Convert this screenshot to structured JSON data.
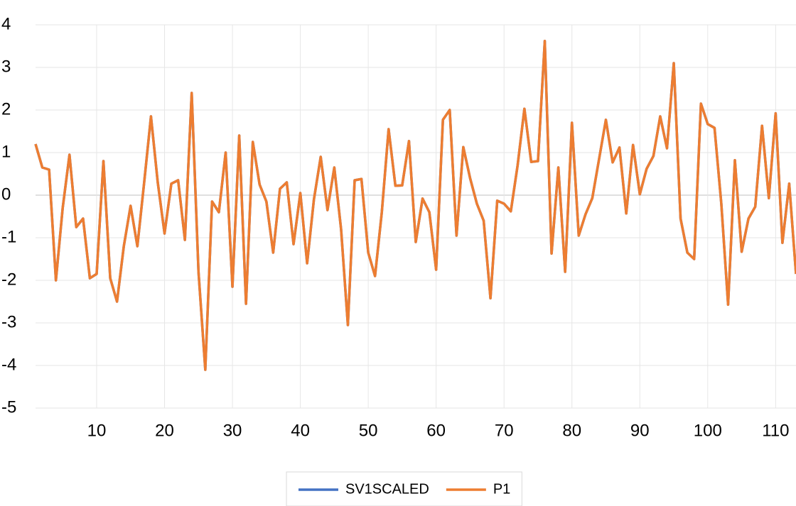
{
  "chart_data": {
    "type": "line",
    "x": [
      1,
      2,
      3,
      4,
      5,
      6,
      7,
      8,
      9,
      10,
      11,
      12,
      13,
      14,
      15,
      16,
      17,
      18,
      19,
      20,
      21,
      22,
      23,
      24,
      25,
      26,
      27,
      28,
      29,
      30,
      31,
      32,
      33,
      34,
      35,
      36,
      37,
      38,
      39,
      40,
      41,
      42,
      43,
      44,
      45,
      46,
      47,
      48,
      49,
      50,
      51,
      52,
      53,
      54,
      55,
      56,
      57,
      58,
      59,
      60,
      61,
      62,
      63,
      64,
      65,
      66,
      67,
      68,
      69,
      70,
      71,
      72,
      73,
      74,
      75,
      76,
      77,
      78,
      79,
      80,
      81,
      82,
      83,
      84,
      85,
      86,
      87,
      88,
      89,
      90,
      91,
      92,
      93,
      94,
      95,
      96,
      97,
      98,
      99,
      100,
      101,
      102,
      103,
      104,
      105,
      106,
      107,
      108,
      109,
      110,
      111,
      112,
      113
    ],
    "series": [
      {
        "name": "SV1SCALED",
        "color": "#4472c4",
        "values": [
          1.2,
          0.65,
          0.6,
          -2.0,
          -0.3,
          0.95,
          -0.75,
          -0.55,
          -1.95,
          -1.85,
          0.8,
          -1.95,
          -2.5,
          -1.2,
          -0.25,
          -1.2,
          0.3,
          1.85,
          0.3,
          -0.9,
          0.27,
          0.35,
          -1.05,
          2.4,
          -1.8,
          -4.1,
          -0.15,
          -0.4,
          1.0,
          -2.15,
          1.4,
          -2.55,
          1.25,
          0.25,
          -0.15,
          -1.35,
          0.15,
          0.3,
          -1.15,
          0.05,
          -1.6,
          -0.1,
          0.9,
          -0.35,
          0.65,
          -0.8,
          -3.05,
          0.35,
          0.38,
          -1.35,
          -1.9,
          -0.4,
          1.55,
          0.22,
          0.23,
          1.27,
          -1.1,
          -0.08,
          -0.4,
          -1.75,
          1.77,
          2.0,
          -0.95,
          1.13,
          0.4,
          -0.2,
          -0.6,
          -2.42,
          -0.13,
          -0.2,
          -0.38,
          0.7,
          2.03,
          0.78,
          0.8,
          3.62,
          -1.37,
          0.65,
          -1.8,
          1.7,
          -0.95,
          -0.45,
          -0.07,
          0.85,
          1.77,
          0.77,
          1.12,
          -0.43,
          1.18,
          0.02,
          0.62,
          0.92,
          1.85,
          1.1,
          3.1,
          -0.55,
          -1.35,
          -1.5,
          2.15,
          1.67,
          1.58,
          -0.2,
          -2.57,
          0.82,
          -1.33,
          -0.55,
          -0.27,
          1.63,
          -0.07,
          1.92,
          -1.12,
          0.27,
          -1.85
        ]
      },
      {
        "name": "P1",
        "color": "#ed7d31",
        "values": [
          1.2,
          0.65,
          0.6,
          -2.0,
          -0.3,
          0.95,
          -0.75,
          -0.55,
          -1.95,
          -1.85,
          0.8,
          -1.95,
          -2.5,
          -1.2,
          -0.25,
          -1.2,
          0.3,
          1.85,
          0.3,
          -0.9,
          0.27,
          0.35,
          -1.05,
          2.4,
          -1.8,
          -4.1,
          -0.15,
          -0.4,
          1.0,
          -2.15,
          1.4,
          -2.55,
          1.25,
          0.25,
          -0.15,
          -1.35,
          0.15,
          0.3,
          -1.15,
          0.05,
          -1.6,
          -0.1,
          0.9,
          -0.35,
          0.65,
          -0.8,
          -3.05,
          0.35,
          0.38,
          -1.35,
          -1.9,
          -0.4,
          1.55,
          0.22,
          0.23,
          1.27,
          -1.1,
          -0.08,
          -0.4,
          -1.75,
          1.77,
          2.0,
          -0.95,
          1.13,
          0.4,
          -0.2,
          -0.6,
          -2.42,
          -0.13,
          -0.2,
          -0.38,
          0.7,
          2.03,
          0.78,
          0.8,
          3.62,
          -1.37,
          0.65,
          -1.8,
          1.7,
          -0.95,
          -0.45,
          -0.07,
          0.85,
          1.77,
          0.77,
          1.12,
          -0.43,
          1.18,
          0.02,
          0.62,
          0.92,
          1.85,
          1.1,
          3.1,
          -0.55,
          -1.35,
          -1.5,
          2.15,
          1.67,
          1.58,
          -0.2,
          -2.57,
          0.82,
          -1.33,
          -0.55,
          -0.27,
          1.63,
          -0.07,
          1.92,
          -1.12,
          0.27,
          -1.85
        ]
      }
    ],
    "xlim": [
      1,
      113
    ],
    "xticks": [
      10,
      20,
      30,
      40,
      50,
      60,
      70,
      80,
      90,
      100,
      110
    ],
    "ylim": [
      -5,
      4
    ],
    "yticks": [
      -5,
      -4,
      -3,
      -2,
      -1,
      0,
      1,
      2,
      3,
      4
    ],
    "grid": true,
    "legend": "bottom"
  }
}
